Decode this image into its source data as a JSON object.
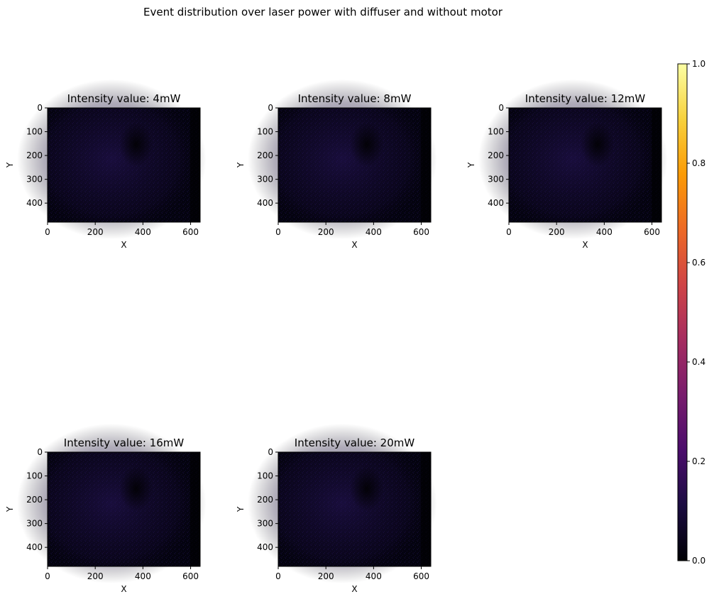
{
  "figure": {
    "suptitle": "Event distribution over laser power with diffuser and without motor"
  },
  "chart_data": {
    "type": "heatmap",
    "suptitle": "Event distribution over laser power with diffuser and without motor",
    "colormap": "inferno",
    "shared_axes": {
      "xlabel": "X",
      "ylabel": "Y",
      "xlim": [
        0,
        640
      ],
      "ylim": [
        480,
        0
      ],
      "xticks": [
        0,
        200,
        400,
        600
      ],
      "yticks": [
        0,
        100,
        200,
        300,
        400
      ]
    },
    "panels": [
      {
        "title": "Intensity value: 4mW",
        "power_mw": 4
      },
      {
        "title": "Intensity value: 8mW",
        "power_mw": 8
      },
      {
        "title": "Intensity value: 12mW",
        "power_mw": 12
      },
      {
        "title": "Intensity value: 16mW",
        "power_mw": 16
      },
      {
        "title": "Intensity value: 20mW",
        "power_mw": 20
      }
    ],
    "colorbar": {
      "range": [
        0.0,
        1.0
      ],
      "ticks": [
        0.0,
        0.2,
        0.4,
        0.6,
        0.8,
        1.0
      ],
      "tick_labels": [
        "0.0",
        "0.2",
        "0.4",
        "0.6",
        "0.8",
        "1.0"
      ],
      "stops": [
        "#000004",
        "#1b0c41",
        "#4a0c6b",
        "#781c6d",
        "#a52c60",
        "#cf4446",
        "#ed6925",
        "#fb9b06",
        "#f7d13d",
        "#fcffa4"
      ]
    },
    "grid": false
  }
}
